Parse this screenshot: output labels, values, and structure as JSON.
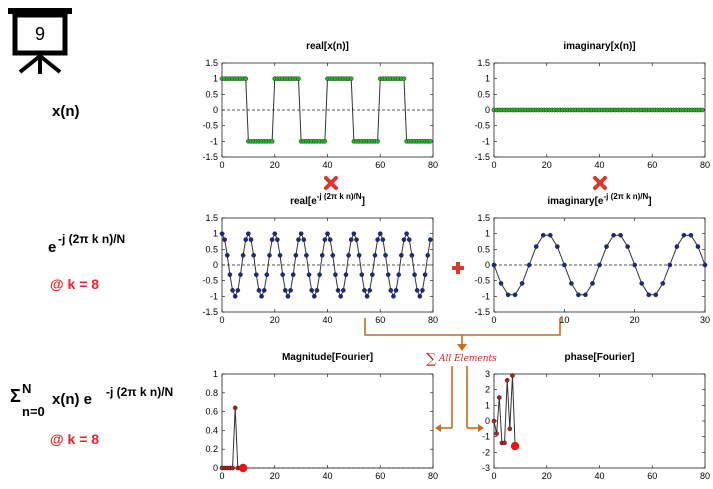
{
  "frame": {
    "number": "9"
  },
  "rows": {
    "signal": {
      "label": "x(n)"
    },
    "kernel": {
      "label_base": "e",
      "label_exp": "-j (2π k n)/N",
      "k_label": "@ k = 8",
      "k_color": "#ee2222"
    },
    "sum": {
      "sigma": "Σ",
      "upper": "N",
      "lower": "n=0",
      "body": "x(n) e",
      "exp": "-j (2π k n)/N",
      "k_label": "@ k = 8"
    }
  },
  "operators": {
    "times_color": "#d9382f",
    "plus_color": "#d9382f",
    "arrow_color": "#cc6a1a",
    "sum_note": "All Elements",
    "sum_note_color": "#cc2222"
  },
  "chart_data": [
    {
      "id": "real-x",
      "type": "line",
      "title": "real[x(n)]",
      "xlim": [
        0,
        80
      ],
      "ylim": [
        -1.5,
        1.5
      ],
      "xticks": [
        0,
        20,
        40,
        60,
        80
      ],
      "yticks": [
        1.5,
        1,
        0.5,
        0,
        -0.5,
        -1,
        -1.5
      ],
      "marker_color": "#22b822",
      "line_color": "#333333",
      "zero_line": "dashed",
      "series": [
        {
          "x_start": 0,
          "x_end": 79,
          "values": [
            1,
            1,
            1,
            1,
            1,
            1,
            1,
            1,
            1,
            1,
            -1,
            -1,
            -1,
            -1,
            -1,
            -1,
            -1,
            -1,
            -1,
            -1,
            1,
            1,
            1,
            1,
            1,
            1,
            1,
            1,
            1,
            1,
            -1,
            -1,
            -1,
            -1,
            -1,
            -1,
            -1,
            -1,
            -1,
            -1,
            1,
            1,
            1,
            1,
            1,
            1,
            1,
            1,
            1,
            1,
            -1,
            -1,
            -1,
            -1,
            -1,
            -1,
            -1,
            -1,
            -1,
            -1,
            1,
            1,
            1,
            1,
            1,
            1,
            1,
            1,
            1,
            1,
            -1,
            -1,
            -1,
            -1,
            -1,
            -1,
            -1,
            -1,
            -1,
            -1
          ]
        }
      ]
    },
    {
      "id": "imag-x",
      "type": "line",
      "title": "imaginary[x(n)]",
      "xlim": [
        0,
        80
      ],
      "ylim": [
        -1.5,
        1.5
      ],
      "xticks": [
        0,
        20,
        40,
        60,
        80
      ],
      "yticks": [
        1.5,
        1,
        0.5,
        0,
        -0.5,
        -1,
        -1.5
      ],
      "marker_color": "#22b822",
      "line_color": "#333333",
      "zero_line": "dashed",
      "series": [
        {
          "x_start": 0,
          "x_end": 79,
          "constant": 0
        }
      ]
    },
    {
      "id": "real-kernel",
      "type": "line",
      "title": "real[e",
      "title_sup": "-j (2π k n)/N",
      "title_end": "]",
      "xlim": [
        0,
        80
      ],
      "ylim": [
        -1.5,
        1.5
      ],
      "xticks": [
        0,
        20,
        40,
        60,
        80
      ],
      "yticks": [
        1.5,
        1,
        0.5,
        0,
        -0.5,
        -1,
        -1.5
      ],
      "marker_color": "#1a2a8a",
      "line_color": "#333333",
      "zero_line": "dashed",
      "series": [
        {
          "func": "cos",
          "k": 8,
          "N": 80,
          "x_start": 0,
          "x_end": 79
        }
      ]
    },
    {
      "id": "imag-kernel",
      "type": "line",
      "title": "imaginary[e",
      "title_sup": "-j (2π k n)/N",
      "title_end": "]",
      "xlim": [
        0,
        30
      ],
      "ylim": [
        -1.5,
        1.5
      ],
      "xticks": [
        0,
        10,
        20,
        30
      ],
      "yticks": [
        1.5,
        1,
        0.5,
        0,
        -0.5,
        -1,
        -1.5
      ],
      "marker_color": "#1a2a8a",
      "line_color": "#333333",
      "zero_line": "dashed",
      "series": [
        {
          "func": "-sin",
          "k": 8,
          "N": 80,
          "x_start": 0,
          "x_end": 30
        }
      ]
    },
    {
      "id": "magnitude",
      "type": "line",
      "title": "Magnitude[Fourier]",
      "xlim": [
        0,
        80
      ],
      "ylim": [
        0,
        1
      ],
      "xticks": [
        0,
        20,
        40,
        60,
        80
      ],
      "yticks": [
        1,
        0.8,
        0.6,
        0.4,
        0.2,
        0
      ],
      "marker_color": "#b02020",
      "line_color": "#333333",
      "zero_line": "dashed",
      "series": [
        {
          "x": [
            0,
            1,
            2,
            3,
            4,
            5,
            6,
            7,
            8
          ],
          "values": [
            0,
            0,
            0,
            0,
            0,
            0.64,
            0,
            0,
            0
          ]
        }
      ],
      "highlight": {
        "x": 8,
        "y": 0,
        "color": "#ee1111"
      }
    },
    {
      "id": "phase",
      "type": "line",
      "title": "phase[Fourier]",
      "xlim": [
        0,
        80
      ],
      "ylim": [
        -3,
        3
      ],
      "xticks": [
        0,
        20,
        40,
        60,
        80
      ],
      "yticks": [
        3,
        2,
        1,
        0,
        -1,
        -2,
        -3
      ],
      "marker_color": "#b02020",
      "line_color": "#333333",
      "zero_line": "none",
      "series": [
        {
          "x": [
            0,
            1,
            2,
            3,
            4,
            5,
            6,
            7,
            8
          ],
          "values": [
            0,
            -0.8,
            1.5,
            -1.4,
            -1.4,
            2.6,
            -0.5,
            2.9,
            -1.6
          ]
        }
      ],
      "highlight": {
        "x": 8,
        "y": -1.6,
        "color": "#ee1111"
      }
    }
  ]
}
